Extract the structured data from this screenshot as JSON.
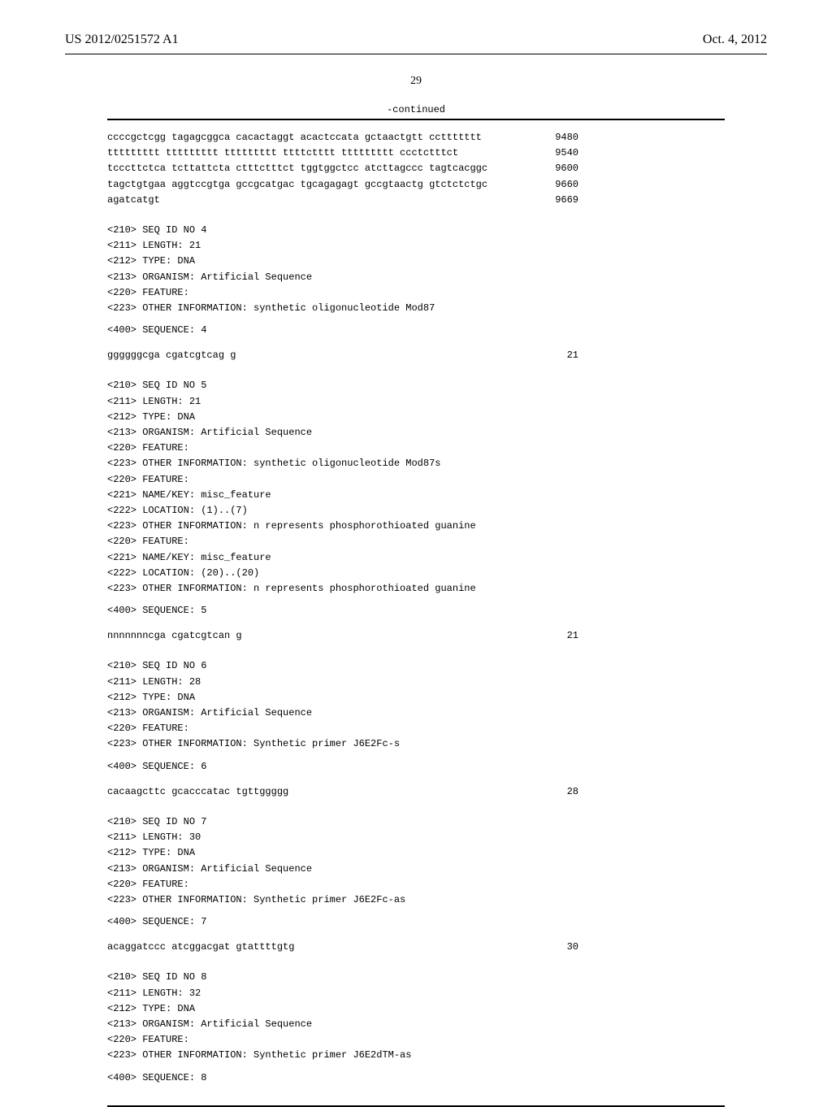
{
  "header": {
    "pub_number": "US 2012/0251572 A1",
    "pub_date": "Oct. 4, 2012"
  },
  "page_number": "29",
  "continued_label": "-continued",
  "sequence_tail": {
    "rows": [
      {
        "seq": "ccccgctcgg tagagcggca cacactaggt acactccata gctaactgtt ccttttttt",
        "num": "9480"
      },
      {
        "seq": "ttttttttt ttttttttt ttttttttt ttttctttt ttttttttt ccctctttct",
        "num": "9540"
      },
      {
        "seq": "tcccttctca tcttattcta ctttctttct tggtggctcc atcttagccc tagtcacggc",
        "num": "9600"
      },
      {
        "seq": "tagctgtgaa aggtccgtga gccgcatgac tgcagagagt gccgtaactg gtctctctgc",
        "num": "9660"
      },
      {
        "seq": "agatcatgt",
        "num": "9669"
      }
    ]
  },
  "entries": [
    {
      "meta": [
        "<210> SEQ ID NO 4",
        "<211> LENGTH: 21",
        "<212> TYPE: DNA",
        "<213> ORGANISM: Artificial Sequence",
        "<220> FEATURE:",
        "<223> OTHER INFORMATION: synthetic oligonucleotide Mod87"
      ],
      "seq_label": "<400> SEQUENCE: 4",
      "seq_rows": [
        {
          "seq": "ggggggcga cgatcgtcag g",
          "num": "21"
        }
      ]
    },
    {
      "meta": [
        "<210> SEQ ID NO 5",
        "<211> LENGTH: 21",
        "<212> TYPE: DNA",
        "<213> ORGANISM: Artificial Sequence",
        "<220> FEATURE:",
        "<223> OTHER INFORMATION: synthetic oligonucleotide Mod87s",
        "<220> FEATURE:",
        "<221> NAME/KEY: misc_feature",
        "<222> LOCATION: (1)..(7)",
        "<223> OTHER INFORMATION: n represents phosphorothioated guanine",
        "<220> FEATURE:",
        "<221> NAME/KEY: misc_feature",
        "<222> LOCATION: (20)..(20)",
        "<223> OTHER INFORMATION: n represents phosphorothioated guanine"
      ],
      "seq_label": "<400> SEQUENCE: 5",
      "seq_rows": [
        {
          "seq": "nnnnnnncga cgatcgtcan g",
          "num": "21"
        }
      ]
    },
    {
      "meta": [
        "<210> SEQ ID NO 6",
        "<211> LENGTH: 28",
        "<212> TYPE: DNA",
        "<213> ORGANISM: Artificial Sequence",
        "<220> FEATURE:",
        "<223> OTHER INFORMATION: Synthetic primer J6E2Fc-s"
      ],
      "seq_label": "<400> SEQUENCE: 6",
      "seq_rows": [
        {
          "seq": "cacaagcttc gcacccatac tgttggggg",
          "num": "28"
        }
      ]
    },
    {
      "meta": [
        "<210> SEQ ID NO 7",
        "<211> LENGTH: 30",
        "<212> TYPE: DNA",
        "<213> ORGANISM: Artificial Sequence",
        "<220> FEATURE:",
        "<223> OTHER INFORMATION: Synthetic primer J6E2Fc-as"
      ],
      "seq_label": "<400> SEQUENCE: 7",
      "seq_rows": [
        {
          "seq": "acaggatccc atcggacgat gtattttgtg",
          "num": "30"
        }
      ]
    },
    {
      "meta": [
        "<210> SEQ ID NO 8",
        "<211> LENGTH: 32",
        "<212> TYPE: DNA",
        "<213> ORGANISM: Artificial Sequence",
        "<220> FEATURE:",
        "<223> OTHER INFORMATION: Synthetic primer J6E2dTM-as"
      ],
      "seq_label": "<400> SEQUENCE: 8",
      "seq_rows": []
    }
  ]
}
